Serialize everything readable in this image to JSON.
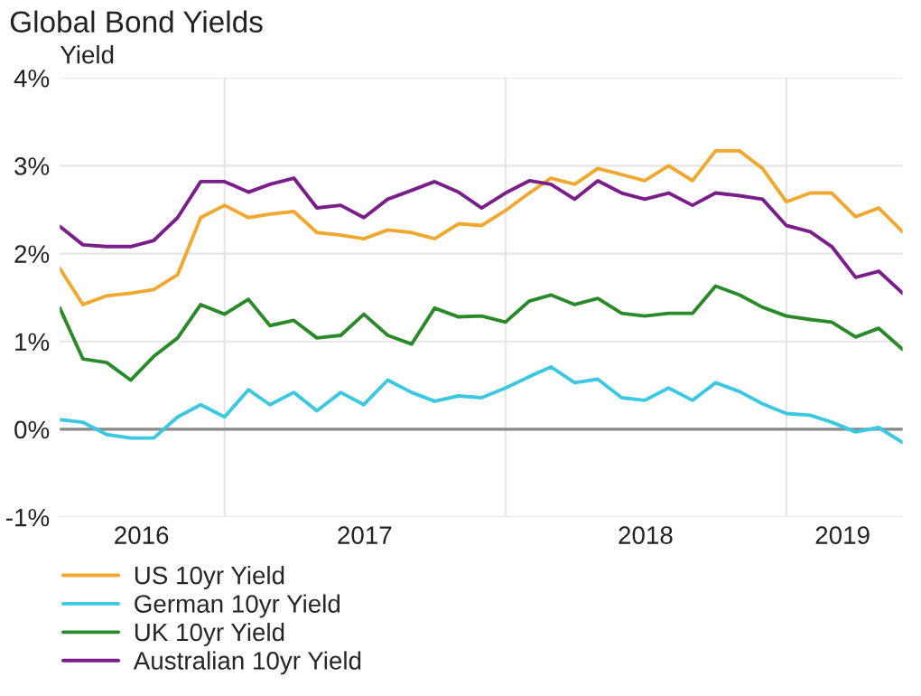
{
  "chart_data": {
    "type": "line",
    "title": "Global Bond Yields",
    "ylabel": "Yield",
    "x": [
      "2016-06-01",
      "2016-07-01",
      "2016-08-01",
      "2016-09-01",
      "2016-10-01",
      "2016-11-01",
      "2016-12-01",
      "2017-01-01",
      "2017-02-01",
      "2017-03-01",
      "2017-04-01",
      "2017-05-01",
      "2017-06-01",
      "2017-07-01",
      "2017-08-01",
      "2017-09-01",
      "2017-10-01",
      "2017-11-01",
      "2017-12-01",
      "2018-01-01",
      "2018-02-01",
      "2018-03-01",
      "2018-04-01",
      "2018-05-01",
      "2018-06-01",
      "2018-07-01",
      "2018-08-01",
      "2018-09-01",
      "2018-10-01",
      "2018-11-01",
      "2018-12-01",
      "2019-01-01",
      "2019-02-01",
      "2019-03-01",
      "2019-04-01",
      "2019-05-01",
      "2019-06-01"
    ],
    "series": [
      {
        "name": "US 10yr Yield",
        "color": "#f0a830",
        "values": [
          1.83,
          1.42,
          1.52,
          1.55,
          1.59,
          1.76,
          2.41,
          2.55,
          2.41,
          2.45,
          2.48,
          2.24,
          2.21,
          2.17,
          2.27,
          2.24,
          2.17,
          2.34,
          2.32,
          2.49,
          2.69,
          2.86,
          2.79,
          2.97,
          2.9,
          2.83,
          3.0,
          2.83,
          3.17,
          3.17,
          2.97,
          2.59,
          2.69,
          2.69,
          2.42,
          2.52,
          2.25
        ]
      },
      {
        "name": "German 10yr Yield",
        "color": "#3cc8e0",
        "values": [
          0.11,
          0.08,
          -0.06,
          -0.1,
          -0.1,
          0.14,
          0.28,
          0.14,
          0.45,
          0.28,
          0.42,
          0.21,
          0.42,
          0.28,
          0.56,
          0.42,
          0.32,
          0.38,
          0.36,
          0.47,
          0.6,
          0.71,
          0.53,
          0.57,
          0.36,
          0.33,
          0.47,
          0.33,
          0.53,
          0.43,
          0.29,
          0.18,
          0.16,
          0.08,
          -0.03,
          0.02,
          -0.15
        ]
      },
      {
        "name": "UK 10yr Yield",
        "color": "#2a8a2a",
        "values": [
          1.38,
          0.8,
          0.76,
          0.56,
          0.83,
          1.04,
          1.42,
          1.31,
          1.48,
          1.18,
          1.24,
          1.04,
          1.07,
          1.31,
          1.07,
          0.97,
          1.38,
          1.28,
          1.29,
          1.22,
          1.46,
          1.53,
          1.42,
          1.49,
          1.32,
          1.29,
          1.32,
          1.32,
          1.63,
          1.53,
          1.39,
          1.29,
          1.25,
          1.22,
          1.05,
          1.15,
          0.91
        ]
      },
      {
        "name": "Australian 10yr Yield",
        "color": "#7a1f8a",
        "values": [
          2.31,
          2.1,
          2.08,
          2.08,
          2.15,
          2.41,
          2.82,
          2.82,
          2.7,
          2.79,
          2.86,
          2.52,
          2.55,
          2.41,
          2.62,
          2.72,
          2.82,
          2.7,
          2.52,
          2.69,
          2.83,
          2.79,
          2.62,
          2.83,
          2.69,
          2.62,
          2.69,
          2.55,
          2.69,
          2.66,
          2.62,
          2.32,
          2.25,
          2.08,
          1.73,
          1.8,
          1.55
        ]
      }
    ],
    "xlim": [
      "2016-06-01",
      "2019-06-01"
    ],
    "xticks": [
      {
        "value": "2016-09-15",
        "label": "2016"
      },
      {
        "value": "2017-01-01",
        "label": null
      },
      {
        "value": "2017-07-02",
        "label": "2017"
      },
      {
        "value": "2018-01-01",
        "label": null
      },
      {
        "value": "2018-07-02",
        "label": "2018"
      },
      {
        "value": "2019-01-01",
        "label": null
      },
      {
        "value": "2019-03-15",
        "label": "2019"
      }
    ],
    "ylim": [
      -1,
      4
    ],
    "yticks": [
      {
        "value": -1,
        "label": "-1%"
      },
      {
        "value": 0,
        "label": "0%"
      },
      {
        "value": 1,
        "label": "1%"
      },
      {
        "value": 2,
        "label": "2%"
      },
      {
        "value": 3,
        "label": "3%"
      },
      {
        "value": 4,
        "label": "4%"
      }
    ],
    "ref_lines": [
      {
        "axis": "y",
        "value": 0,
        "color": "#888888"
      }
    ],
    "grid": true,
    "legend": "bottom left",
    "line_style": "solid",
    "marker": "none"
  }
}
